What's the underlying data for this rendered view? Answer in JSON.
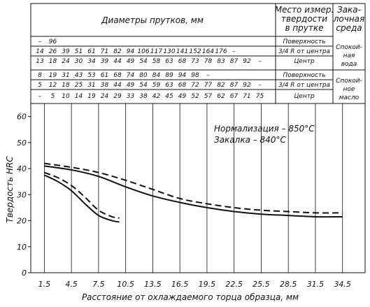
{
  "table": {
    "header_diameters": "Диаметры прутков, мм",
    "header_place": "Место измер. твердости в прутке",
    "header_place_lines": [
      "Место измер.",
      "твердости",
      "в прутке"
    ],
    "header_medium": "Закалочная среда",
    "header_medium_lines": [
      "Зака-",
      "лочная",
      "среда"
    ],
    "water_rows": [
      {
        "values": [
          "–",
          "96",
          "",
          "",
          "",
          "",
          "",
          "",
          "",
          "",
          "",
          "",
          "",
          "",
          "",
          ""
        ],
        "place": "Поверхность"
      },
      {
        "values": [
          "14",
          "26",
          "39",
          "51",
          "61",
          "71",
          "82",
          "94",
          "106",
          "117",
          "130",
          "141",
          "152",
          "164",
          "176",
          "–"
        ],
        "place": "3/4 R от центра"
      },
      {
        "values": [
          "13",
          "18",
          "24",
          "30",
          "34",
          "39",
          "44",
          "49",
          "54",
          "58",
          "63",
          "68",
          "73",
          "78",
          "83",
          "87",
          "92",
          "–"
        ],
        "place": "Центр"
      }
    ],
    "oil_rows": [
      {
        "values": [
          "8",
          "19",
          "31",
          "43",
          "53",
          "61",
          "68",
          "74",
          "80",
          "84",
          "89",
          "94",
          "98",
          "–"
        ],
        "place": "Поверхность"
      },
      {
        "values": [
          "5",
          "12",
          "18",
          "25",
          "31",
          "38",
          "44",
          "49",
          "54",
          "59",
          "63",
          "68",
          "72",
          "77",
          "82",
          "87",
          "92",
          "–"
        ],
        "place": "3/4 R от центра"
      },
      {
        "values": [
          "–",
          "5",
          "10",
          "14",
          "19",
          "24",
          "29",
          "33",
          "38",
          "42",
          "45",
          "49",
          "52",
          "57",
          "62",
          "67",
          "71",
          "75"
        ],
        "place": "Центр"
      }
    ],
    "water_medium_lines": [
      "Спокой-",
      "ная",
      "вода"
    ],
    "oil_medium_lines": [
      "Спокой-",
      "ное",
      "масло"
    ]
  },
  "chart_data": {
    "type": "line",
    "ylabel": "Твердость HRC",
    "xlabel": "Расстояние от охлаждаемого торца образца, мм",
    "ylim": [
      0,
      65
    ],
    "yticks": [
      0,
      10,
      20,
      30,
      40,
      50,
      60
    ],
    "xticks": [
      1.5,
      4.5,
      7.5,
      10.5,
      13.5,
      16.5,
      19.5,
      22.5,
      25.5,
      28.5,
      31.5,
      34.5
    ],
    "xlim": [
      0,
      37
    ],
    "grid": "vertical",
    "annotations": [
      "Нормализация – 850°С",
      "Закалка – 840°С"
    ],
    "series": [
      {
        "style": "dashed",
        "x": [
          1.5,
          4.5,
          7.5,
          10.5,
          13.5,
          16.5,
          19.5,
          22.5,
          25.5,
          28.5,
          31.5,
          34.5
        ],
        "values": [
          42,
          40.5,
          38.5,
          35.5,
          32,
          28.5,
          26.5,
          25,
          24,
          23.5,
          23,
          23
        ]
      },
      {
        "style": "solid",
        "x": [
          1.5,
          4.5,
          7.5,
          10.5,
          13.5,
          16.5,
          19.5,
          22.5,
          25.5,
          28.5,
          31.5,
          34.5
        ],
        "values": [
          41,
          39.5,
          37,
          33,
          29.5,
          27,
          25,
          23.5,
          22.5,
          22,
          21.5,
          21.5
        ]
      },
      {
        "style": "dashed",
        "x": [
          1.5,
          3,
          4.5,
          6,
          7.5,
          9,
          9.8
        ],
        "values": [
          38.5,
          36.5,
          33.5,
          29,
          24,
          21.5,
          21
        ]
      },
      {
        "style": "solid",
        "x": [
          1.5,
          3,
          4.5,
          6,
          7.5,
          9,
          9.8
        ],
        "values": [
          37.5,
          35,
          31.5,
          26.5,
          22,
          20,
          19.5
        ]
      }
    ]
  }
}
